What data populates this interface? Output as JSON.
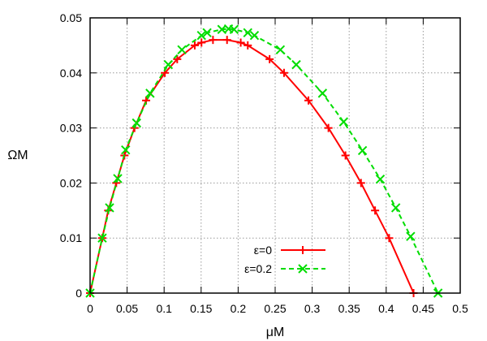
{
  "chart_data": {
    "type": "line",
    "title": "",
    "xlabel": "μM",
    "ylabel": "ΩM",
    "xlim": [
      0,
      0.5
    ],
    "ylim": [
      0,
      0.05
    ],
    "xticks": [
      "0",
      "0.05",
      "0.1",
      "0.15",
      "0.2",
      "0.25",
      "0.3",
      "0.35",
      "0.4",
      "0.45",
      "0.5"
    ],
    "yticks": [
      "0",
      "0.01",
      "0.02",
      "0.03",
      "0.04",
      "0.05"
    ],
    "grid": true,
    "legend_position": "bottom-center",
    "series": [
      {
        "name": "ε=0",
        "color": "#ff0000",
        "line": "solid",
        "marker": "plus",
        "x": [
          0,
          0.0164,
          0.0245,
          0.0354,
          0.0464,
          0.06,
          0.0757,
          0.101,
          0.1177,
          0.1414,
          0.1505,
          0.166,
          0.185,
          0.2035,
          0.213,
          0.2425,
          0.262,
          0.295,
          0.322,
          0.345,
          0.366,
          0.385,
          0.404,
          0.437
        ],
        "y": [
          0,
          0.01,
          0.015,
          0.02,
          0.025,
          0.03,
          0.035,
          0.04,
          0.0425,
          0.045,
          0.0455,
          0.046,
          0.046,
          0.0455,
          0.045,
          0.0425,
          0.04,
          0.035,
          0.03,
          0.025,
          0.02,
          0.015,
          0.01,
          0
        ]
      },
      {
        "name": "ε=0.2",
        "color": "#00dd00",
        "line": "dashed",
        "marker": "cross",
        "x": [
          0,
          0.0164,
          0.0263,
          0.0373,
          0.048,
          0.0628,
          0.081,
          0.1057,
          0.124,
          0.1505,
          0.158,
          0.178,
          0.187,
          0.1945,
          0.213,
          0.222,
          0.257,
          0.2785,
          0.314,
          0.3425,
          0.368,
          0.392,
          0.413,
          0.433,
          0.47
        ],
        "y": [
          0,
          0.01,
          0.0155,
          0.0208,
          0.026,
          0.0309,
          0.0363,
          0.0415,
          0.0442,
          0.0468,
          0.0473,
          0.0479,
          0.048,
          0.0479,
          0.0473,
          0.0468,
          0.0442,
          0.0415,
          0.0363,
          0.0311,
          0.0259,
          0.0207,
          0.0155,
          0.0103,
          0
        ]
      }
    ]
  }
}
